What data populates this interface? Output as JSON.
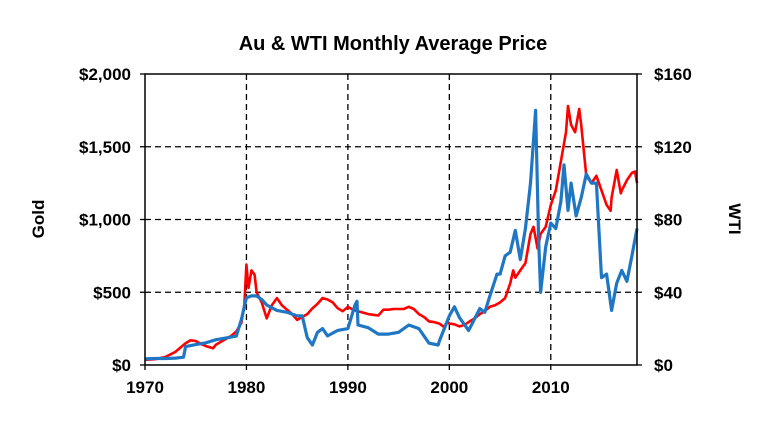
{
  "chart_data": {
    "type": "line",
    "title": "Au & WTI Monthly Average Price",
    "xlabel": "",
    "ylabel_left": "Gold",
    "ylabel_right": "WTI",
    "xlim": [
      1970,
      2018.5
    ],
    "ylim_left": [
      0,
      2000
    ],
    "ylim_right": [
      0,
      160
    ],
    "x_ticks": [
      1970,
      1980,
      1990,
      2000,
      2010
    ],
    "x_tick_labels": [
      "1970",
      "1980",
      "1990",
      "2000",
      "2010"
    ],
    "y_left_ticks": [
      0,
      500,
      1000,
      1500,
      2000
    ],
    "y_left_tick_labels": [
      "$0",
      "$500",
      "$1,000",
      "$1,500",
      "$2,000"
    ],
    "y_right_ticks": [
      0,
      40,
      80,
      120,
      160
    ],
    "y_right_tick_labels": [
      "$0",
      "$40",
      "$80",
      "$120",
      "$160"
    ],
    "grid": "dashed",
    "series": [
      {
        "name": "Gold",
        "axis": "left",
        "color": "#ff0000",
        "points": [
          [
            1970,
            36
          ],
          [
            1971,
            40
          ],
          [
            1972,
            55
          ],
          [
            1973,
            90
          ],
          [
            1973.5,
            120
          ],
          [
            1974,
            150
          ],
          [
            1974.5,
            170
          ],
          [
            1975,
            165
          ],
          [
            1975.5,
            145
          ],
          [
            1976,
            130
          ],
          [
            1976.7,
            115
          ],
          [
            1977,
            140
          ],
          [
            1978,
            180
          ],
          [
            1978.5,
            200
          ],
          [
            1979,
            230
          ],
          [
            1979.5,
            290
          ],
          [
            1979.8,
            420
          ],
          [
            1980.0,
            690
          ],
          [
            1980.2,
            530
          ],
          [
            1980.5,
            650
          ],
          [
            1980.8,
            620
          ],
          [
            1981,
            500
          ],
          [
            1981.5,
            430
          ],
          [
            1982,
            320
          ],
          [
            1982.5,
            410
          ],
          [
            1983,
            460
          ],
          [
            1983.5,
            410
          ],
          [
            1984,
            380
          ],
          [
            1984.5,
            350
          ],
          [
            1985,
            310
          ],
          [
            1985.5,
            330
          ],
          [
            1986,
            350
          ],
          [
            1986.5,
            390
          ],
          [
            1987,
            420
          ],
          [
            1987.5,
            460
          ],
          [
            1988,
            450
          ],
          [
            1988.5,
            430
          ],
          [
            1989,
            390
          ],
          [
            1989.5,
            370
          ],
          [
            1990,
            400
          ],
          [
            1990.5,
            380
          ],
          [
            1991,
            370
          ],
          [
            1991.5,
            360
          ],
          [
            1992,
            350
          ],
          [
            1992.5,
            345
          ],
          [
            1993,
            340
          ],
          [
            1993.5,
            380
          ],
          [
            1994,
            380
          ],
          [
            1994.5,
            385
          ],
          [
            1995,
            385
          ],
          [
            1995.5,
            385
          ],
          [
            1996,
            400
          ],
          [
            1996.5,
            385
          ],
          [
            1997,
            350
          ],
          [
            1997.5,
            330
          ],
          [
            1998,
            300
          ],
          [
            1998.5,
            295
          ],
          [
            1999,
            285
          ],
          [
            1999.5,
            260
          ],
          [
            1999.8,
            300
          ],
          [
            2000,
            285
          ],
          [
            2000.5,
            280
          ],
          [
            2001,
            265
          ],
          [
            2001.5,
            275
          ],
          [
            2002,
            300
          ],
          [
            2002.5,
            320
          ],
          [
            2003,
            350
          ],
          [
            2003.5,
            370
          ],
          [
            2004,
            400
          ],
          [
            2004.5,
            410
          ],
          [
            2005,
            430
          ],
          [
            2005.5,
            460
          ],
          [
            2006,
            560
          ],
          [
            2006.3,
            650
          ],
          [
            2006.5,
            600
          ],
          [
            2007,
            650
          ],
          [
            2007.5,
            700
          ],
          [
            2008,
            900
          ],
          [
            2008.3,
            950
          ],
          [
            2008.7,
            800
          ],
          [
            2009,
            900
          ],
          [
            2009.5,
            950
          ],
          [
            2010,
            1100
          ],
          [
            2010.5,
            1200
          ],
          [
            2011,
            1400
          ],
          [
            2011.5,
            1600
          ],
          [
            2011.7,
            1780
          ],
          [
            2012,
            1650
          ],
          [
            2012.4,
            1600
          ],
          [
            2012.8,
            1760
          ],
          [
            2013,
            1650
          ],
          [
            2013.5,
            1300
          ],
          [
            2014,
            1250
          ],
          [
            2014.5,
            1300
          ],
          [
            2015,
            1200
          ],
          [
            2015.5,
            1100
          ],
          [
            2015.9,
            1060
          ],
          [
            2016,
            1150
          ],
          [
            2016.5,
            1340
          ],
          [
            2016.9,
            1180
          ],
          [
            2017,
            1200
          ],
          [
            2017.5,
            1270
          ],
          [
            2018,
            1320
          ],
          [
            2018.3,
            1330
          ],
          [
            2018.5,
            1250
          ]
        ]
      },
      {
        "name": "WTI",
        "axis": "right",
        "color": "#1f77c4",
        "points": [
          [
            1970,
            3.35
          ],
          [
            1971,
            3.6
          ],
          [
            1972,
            3.6
          ],
          [
            1973,
            3.8
          ],
          [
            1973.8,
            4.3
          ],
          [
            1974,
            10.1
          ],
          [
            1975,
            11.2
          ],
          [
            1976,
            12.2
          ],
          [
            1977,
            13.9
          ],
          [
            1978,
            14.9
          ],
          [
            1979,
            15.9
          ],
          [
            1979.5,
            25
          ],
          [
            1980,
            37
          ],
          [
            1980.5,
            38
          ],
          [
            1981,
            38
          ],
          [
            1981.5,
            36
          ],
          [
            1982,
            33
          ],
          [
            1983,
            30
          ],
          [
            1984,
            29
          ],
          [
            1985,
            27
          ],
          [
            1985.5,
            27
          ],
          [
            1986,
            15
          ],
          [
            1986.5,
            11
          ],
          [
            1987,
            18
          ],
          [
            1987.5,
            20
          ],
          [
            1988,
            16
          ],
          [
            1989,
            19
          ],
          [
            1990,
            20
          ],
          [
            1990.7,
            33
          ],
          [
            1990.9,
            35
          ],
          [
            1991,
            22
          ],
          [
            1992,
            20.5
          ],
          [
            1993,
            17
          ],
          [
            1994,
            17
          ],
          [
            1995,
            18
          ],
          [
            1996,
            22
          ],
          [
            1997,
            20
          ],
          [
            1998,
            12
          ],
          [
            1998.9,
            11
          ],
          [
            1999,
            13
          ],
          [
            1999.5,
            20
          ],
          [
            2000,
            27
          ],
          [
            2000.5,
            32
          ],
          [
            2001,
            26
          ],
          [
            2001.9,
            19
          ],
          [
            2002,
            20
          ],
          [
            2003,
            31
          ],
          [
            2003.5,
            29
          ],
          [
            2004,
            38
          ],
          [
            2004.7,
            50
          ],
          [
            2005,
            50
          ],
          [
            2005.5,
            60
          ],
          [
            2006,
            62
          ],
          [
            2006.5,
            74
          ],
          [
            2007,
            58
          ],
          [
            2007.5,
            75
          ],
          [
            2007.9,
            95
          ],
          [
            2008,
            100
          ],
          [
            2008.5,
            140
          ],
          [
            2008.8,
            70
          ],
          [
            2009,
            40
          ],
          [
            2009.5,
            65
          ],
          [
            2010,
            78
          ],
          [
            2010.5,
            75
          ],
          [
            2011,
            90
          ],
          [
            2011.3,
            110
          ],
          [
            2011.7,
            85
          ],
          [
            2012,
            100
          ],
          [
            2012.5,
            82
          ],
          [
            2013,
            92
          ],
          [
            2013.5,
            105
          ],
          [
            2014,
            100
          ],
          [
            2014.5,
            100
          ],
          [
            2015,
            48
          ],
          [
            2015.5,
            50
          ],
          [
            2016,
            30
          ],
          [
            2016.5,
            45
          ],
          [
            2017,
            52
          ],
          [
            2017.5,
            46
          ],
          [
            2018,
            60
          ],
          [
            2018.5,
            75
          ]
        ]
      }
    ]
  }
}
